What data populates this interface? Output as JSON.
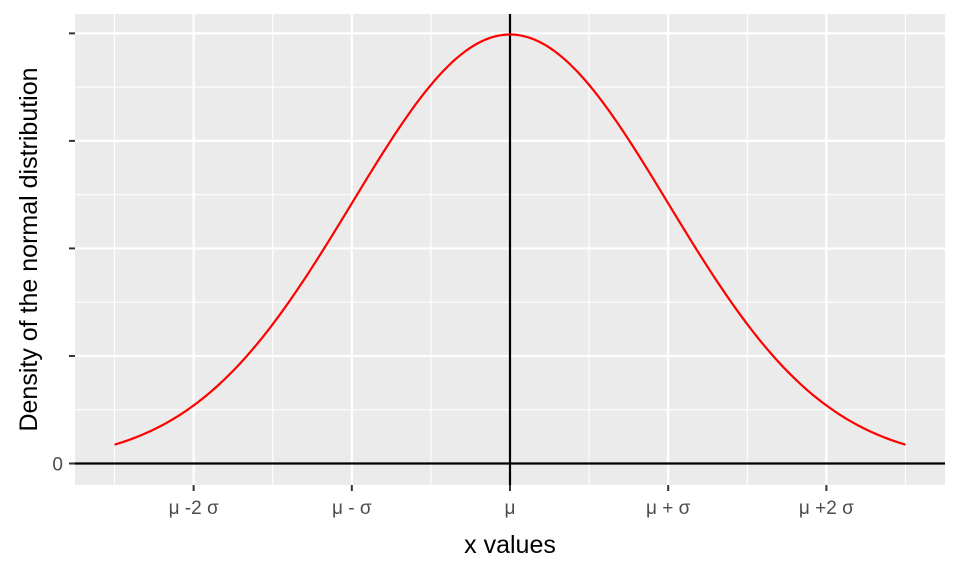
{
  "chart_data": {
    "type": "line",
    "title": "",
    "xlabel": "x values",
    "ylabel": "Density of the normal distribution",
    "xlim": [
      -2.75,
      2.75
    ],
    "ylim": [
      -0.02,
      0.418
    ],
    "x_ticks": [
      {
        "value": -2,
        "label": "μ -2 σ"
      },
      {
        "value": -1,
        "label": "μ - σ"
      },
      {
        "value": 0,
        "label": "μ"
      },
      {
        "value": 1,
        "label": "μ + σ"
      },
      {
        "value": 2,
        "label": "μ +2 σ"
      }
    ],
    "y_ticks": [
      {
        "value": 0,
        "label": "0"
      },
      {
        "value": 0.1,
        "label": ""
      },
      {
        "value": 0.2,
        "label": ""
      },
      {
        "value": 0.3,
        "label": ""
      },
      {
        "value": 0.4,
        "label": ""
      }
    ],
    "x_range": [
      -2.5,
      2.5
    ],
    "mean": 0,
    "sd": 1,
    "series": [
      {
        "color": "#ff0000",
        "x": [
          -2.5,
          -2.25,
          -2,
          -1.75,
          -1.5,
          -1.25,
          -1,
          -0.75,
          -0.5,
          -0.25,
          0,
          0.25,
          0.5,
          0.75,
          1,
          1.25,
          1.5,
          1.75,
          2,
          2.25,
          2.5
        ],
        "y": [
          0.0175,
          0.0317,
          0.054,
          0.0863,
          0.1295,
          0.1826,
          0.242,
          0.3011,
          0.3521,
          0.3867,
          0.3989,
          0.3867,
          0.3521,
          0.3011,
          0.242,
          0.1826,
          0.1295,
          0.0863,
          0.054,
          0.0317,
          0.0175
        ]
      }
    ],
    "reference_lines": {
      "vertical_x": 0,
      "horizontal_y": 0,
      "color": "#000000"
    },
    "grid": true,
    "panel_background": "#ebebeb",
    "grid_color": "#ffffff",
    "legend": "none"
  }
}
